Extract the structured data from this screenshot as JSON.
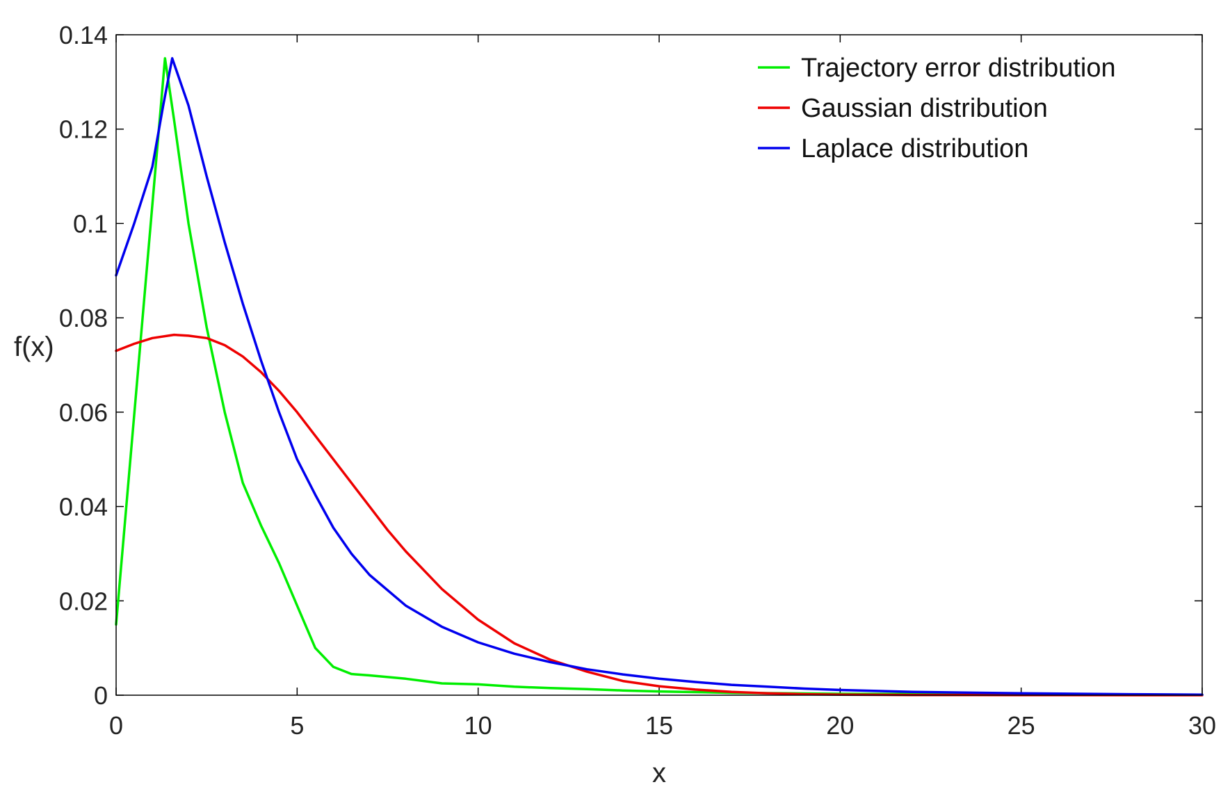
{
  "chart_data": {
    "type": "line",
    "title": "",
    "xlabel": "x",
    "ylabel": "f(x)",
    "xlim": [
      0,
      30
    ],
    "ylim": [
      0,
      0.14
    ],
    "x_ticks": [
      0,
      5,
      10,
      15,
      20,
      25,
      30
    ],
    "x_tick_labels": [
      "0",
      "5",
      "10",
      "15",
      "20",
      "25",
      "30"
    ],
    "y_ticks": [
      0,
      0.02,
      0.04,
      0.06,
      0.08,
      0.1,
      0.12,
      0.14
    ],
    "y_tick_labels": [
      "0",
      "0.02",
      "0.04",
      "0.06",
      "0.08",
      "0.1",
      "0.12",
      "0.14"
    ],
    "grid": false,
    "legend_position": "top-right",
    "series": [
      {
        "name": "Trajectory error distribution",
        "color": "#00ee00",
        "points": [
          [
            0,
            0.015
          ],
          [
            1.35,
            0.135
          ],
          [
            1.6,
            0.122
          ],
          [
            2,
            0.1
          ],
          [
            2.5,
            0.078
          ],
          [
            3,
            0.06
          ],
          [
            3.5,
            0.045
          ],
          [
            4,
            0.036
          ],
          [
            4.5,
            0.028
          ],
          [
            5,
            0.019
          ],
          [
            5.5,
            0.01
          ],
          [
            6,
            0.006
          ],
          [
            6.5,
            0.0045
          ],
          [
            7,
            0.0042
          ],
          [
            8,
            0.0035
          ],
          [
            9,
            0.0025
          ],
          [
            10,
            0.0023
          ],
          [
            11,
            0.0018
          ],
          [
            12,
            0.0015
          ],
          [
            13,
            0.0013
          ],
          [
            14,
            0.001
          ],
          [
            15,
            0.0008
          ],
          [
            17,
            0.0005
          ],
          [
            20,
            0.0003
          ],
          [
            25,
            0.0002
          ],
          [
            30,
            0.0001
          ]
        ]
      },
      {
        "name": "Gaussian distribution",
        "color": "#ee0000",
        "points": [
          [
            0,
            0.073
          ],
          [
            0.5,
            0.0745
          ],
          [
            1,
            0.0757
          ],
          [
            1.6,
            0.0764
          ],
          [
            2,
            0.0762
          ],
          [
            2.5,
            0.0757
          ],
          [
            3,
            0.0742
          ],
          [
            3.5,
            0.0718
          ],
          [
            4,
            0.0685
          ],
          [
            4.5,
            0.0645
          ],
          [
            5,
            0.06
          ],
          [
            5.5,
            0.055
          ],
          [
            6,
            0.05
          ],
          [
            6.5,
            0.045
          ],
          [
            7,
            0.04
          ],
          [
            7.5,
            0.035
          ],
          [
            8,
            0.0305
          ],
          [
            9,
            0.0225
          ],
          [
            10,
            0.016
          ],
          [
            11,
            0.011
          ],
          [
            12,
            0.0075
          ],
          [
            13,
            0.005
          ],
          [
            14,
            0.003
          ],
          [
            15,
            0.0019
          ],
          [
            16,
            0.0012
          ],
          [
            17,
            0.0007
          ],
          [
            18,
            0.0004
          ],
          [
            19,
            0.0002
          ],
          [
            20,
            0.0001
          ],
          [
            22,
            5e-05
          ],
          [
            25,
            2e-05
          ],
          [
            30,
            0
          ]
        ]
      },
      {
        "name": "Laplace distribution",
        "color": "#0000ee",
        "points": [
          [
            0,
            0.089
          ],
          [
            0.5,
            0.1
          ],
          [
            1,
            0.112
          ],
          [
            1.3,
            0.125
          ],
          [
            1.55,
            0.135
          ],
          [
            2,
            0.125
          ],
          [
            2.5,
            0.11
          ],
          [
            3,
            0.096
          ],
          [
            3.5,
            0.083
          ],
          [
            4,
            0.071
          ],
          [
            4.5,
            0.06
          ],
          [
            5,
            0.05
          ],
          [
            5.5,
            0.0425
          ],
          [
            6,
            0.0355
          ],
          [
            6.5,
            0.03
          ],
          [
            7,
            0.0255
          ],
          [
            8,
            0.019
          ],
          [
            9,
            0.0145
          ],
          [
            10,
            0.0112
          ],
          [
            11,
            0.0088
          ],
          [
            12,
            0.007
          ],
          [
            13,
            0.0055
          ],
          [
            14,
            0.0044
          ],
          [
            15,
            0.0035
          ],
          [
            16,
            0.0028
          ],
          [
            17,
            0.0022
          ],
          [
            18,
            0.0018
          ],
          [
            19,
            0.0014
          ],
          [
            20,
            0.0011
          ],
          [
            22,
            0.0007
          ],
          [
            25,
            0.0004
          ],
          [
            28,
            0.0002
          ],
          [
            30,
            0.0001
          ]
        ]
      }
    ]
  }
}
